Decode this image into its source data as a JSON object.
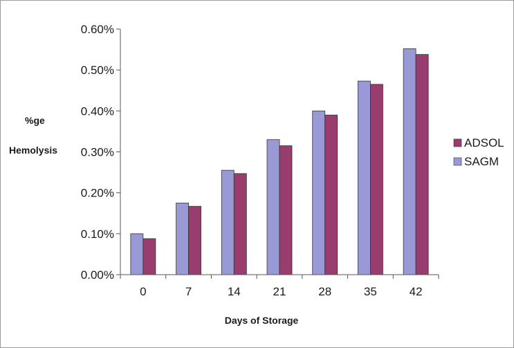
{
  "chart_data": {
    "type": "bar",
    "categories": [
      "0",
      "7",
      "14",
      "21",
      "28",
      "35",
      "42"
    ],
    "series": [
      {
        "name": "SAGM",
        "color": "#9999d6",
        "values": [
          0.001,
          0.00175,
          0.00255,
          0.0033,
          0.004,
          0.00473,
          0.00552
        ]
      },
      {
        "name": "ADSOL",
        "color": "#993d6e",
        "values": [
          0.00088,
          0.00167,
          0.00247,
          0.00315,
          0.0039,
          0.00465,
          0.00538
        ]
      }
    ],
    "yticks": [
      "0.00%",
      "0.10%",
      "0.20%",
      "0.30%",
      "0.40%",
      "0.50%",
      "0.60%"
    ],
    "ylim": [
      0,
      0.006
    ],
    "xlabel": "Days of Storage",
    "ylabel": [
      "%ge",
      "Hemolysis"
    ],
    "legend": {
      "position": "right",
      "entries": [
        {
          "name": "ADSOL",
          "color": "#993d6e"
        },
        {
          "name": "SAGM",
          "color": "#9999d6"
        }
      ]
    },
    "grid": false
  }
}
